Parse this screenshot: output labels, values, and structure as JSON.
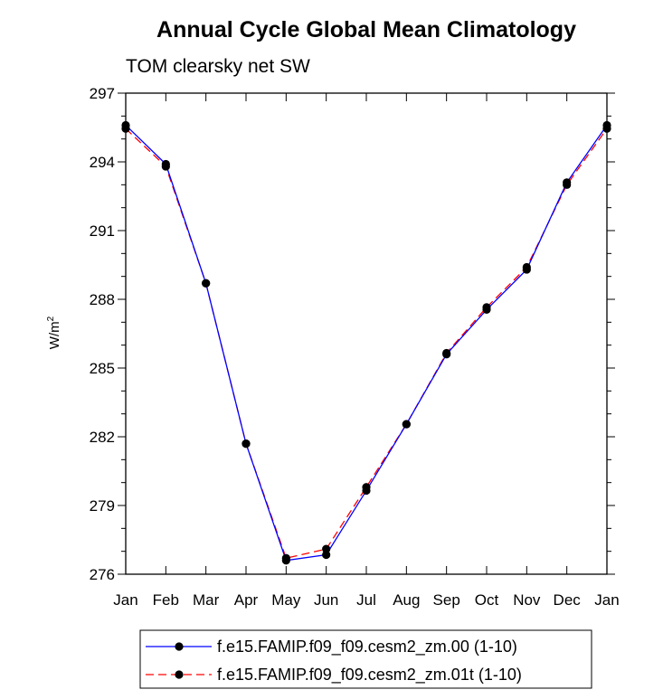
{
  "chart_data": {
    "type": "line",
    "title": "Annual Cycle Global Mean Climatology",
    "subtitle": "TOM clearsky net SW",
    "xlabel": "",
    "ylabel": "W/m",
    "ylabel_superscript": "2",
    "categories": [
      "Jan",
      "Feb",
      "Mar",
      "Apr",
      "May",
      "Jun",
      "Jul",
      "Aug",
      "Sep",
      "Oct",
      "Nov",
      "Dec",
      "Jan"
    ],
    "ylim": [
      276,
      297
    ],
    "yticks": [
      "276",
      "279",
      "282",
      "285",
      "288",
      "291",
      "294",
      "297"
    ],
    "grid": false,
    "legend_position": "bottom",
    "series": [
      {
        "name": "f.e15.FAMIP.f09_f09.cesm2_zm.00 (1-10)",
        "color": "#0000ff",
        "dash": "solid",
        "values": [
          295.6,
          293.9,
          288.7,
          281.7,
          276.6,
          276.85,
          279.65,
          282.55,
          285.6,
          287.55,
          289.3,
          293.1,
          295.6
        ]
      },
      {
        "name": "f.e15.FAMIP.f09_f09.cesm2_zm.01t (1-10)",
        "color": "#ff0000",
        "dash": "dashed",
        "values": [
          295.45,
          293.8,
          288.7,
          281.7,
          276.7,
          277.1,
          279.8,
          282.55,
          285.65,
          287.65,
          289.4,
          293.0,
          295.45
        ]
      }
    ]
  }
}
